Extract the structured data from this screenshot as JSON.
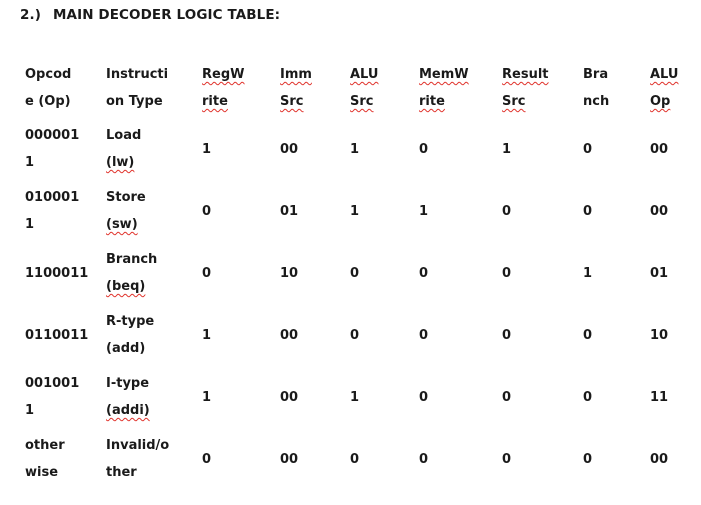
{
  "heading": {
    "number": "2.)",
    "title": "MAIN DECODER LOGIC TABLE:"
  },
  "table": {
    "headers": [
      {
        "lines": [
          "Opcod",
          "e (Op)"
        ],
        "squiggle": false
      },
      {
        "lines": [
          "Instructi",
          "on Type"
        ],
        "squiggle": false
      },
      {
        "lines": [
          "RegW",
          "rite"
        ],
        "squiggle": true
      },
      {
        "lines": [
          "Imm",
          "Src"
        ],
        "squiggle": true
      },
      {
        "lines": [
          "ALU",
          "Src"
        ],
        "squiggle": true
      },
      {
        "lines": [
          "MemW",
          "rite"
        ],
        "squiggle": true
      },
      {
        "lines": [
          "Result",
          "Src"
        ],
        "squiggle": true
      },
      {
        "lines": [
          "Bra",
          "nch"
        ],
        "squiggle": false
      },
      {
        "lines": [
          "ALU",
          "Op"
        ],
        "squiggle": true
      }
    ],
    "rows": [
      {
        "opcode": [
          "000001",
          "1"
        ],
        "type": [
          "Load",
          "(lw)"
        ],
        "squiggle_line": 1,
        "values": [
          "1",
          "00",
          "1",
          "0",
          "1",
          "0",
          "00"
        ]
      },
      {
        "opcode": [
          "010001",
          "1"
        ],
        "type": [
          "Store",
          "(sw)"
        ],
        "squiggle_line": 1,
        "values": [
          "0",
          "01",
          "1",
          "1",
          "0",
          "0",
          "00"
        ]
      },
      {
        "opcode": [
          "1100011"
        ],
        "type": [
          "Branch",
          "(beq)"
        ],
        "squiggle_line": 1,
        "values": [
          "0",
          "10",
          "0",
          "0",
          "0",
          "1",
          "01"
        ]
      },
      {
        "opcode": [
          "0110011"
        ],
        "type": [
          "R-type",
          "(add)"
        ],
        "squiggle_line": -1,
        "values": [
          "1",
          "00",
          "0",
          "0",
          "0",
          "0",
          "10"
        ]
      },
      {
        "opcode": [
          "001001",
          "1"
        ],
        "type": [
          "I-type",
          "(addi)"
        ],
        "squiggle_line": 1,
        "values": [
          "1",
          "00",
          "1",
          "0",
          "0",
          "0",
          "11"
        ]
      },
      {
        "opcode": [
          "other",
          "wise"
        ],
        "type": [
          "Invalid/o",
          "ther"
        ],
        "squiggle_line": -1,
        "values": [
          "0",
          "00",
          "0",
          "0",
          "0",
          "0",
          "00"
        ]
      }
    ]
  }
}
